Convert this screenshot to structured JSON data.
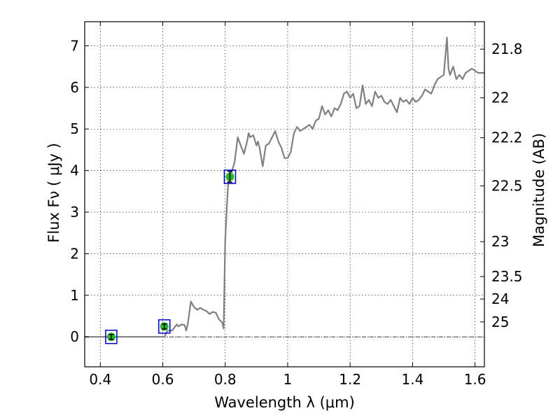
{
  "chart_data": {
    "type": "line",
    "xlabel": "Wavelength  λ (μm)",
    "ylabel": "Flux  Fν  ( μJy )",
    "ylabel_right": "Magnitude (AB)",
    "xlim": [
      0.35,
      1.63
    ],
    "ylim": [
      -0.72,
      7.58
    ],
    "grid": true,
    "x_ticks": [
      0.4,
      0.6,
      0.8,
      1.0,
      1.2,
      1.4,
      1.6
    ],
    "x_tick_labels": [
      "0.4",
      "0.6",
      "0.8",
      "1",
      "1.2",
      "1.4",
      "1.6"
    ],
    "y_ticks": [
      0,
      1,
      2,
      3,
      4,
      5,
      6,
      7
    ],
    "y_tick_labels": [
      "0",
      "1",
      "2",
      "3",
      "4",
      "5",
      "6",
      "7"
    ],
    "right_ticks": [
      {
        "label": "21.8",
        "flux": 6.92
      },
      {
        "label": "22",
        "flux": 5.75
      },
      {
        "label": "22.2",
        "flux": 4.79
      },
      {
        "label": "22.5",
        "flux": 3.63
      },
      {
        "label": "23",
        "flux": 2.29
      },
      {
        "label": "23.5",
        "flux": 1.45
      },
      {
        "label": "24",
        "flux": 0.91
      },
      {
        "label": "25",
        "flux": 0.36
      }
    ],
    "series": [
      {
        "color": "#808080",
        "x": [
          0.35,
          0.58,
          0.605,
          0.615,
          0.63,
          0.645,
          0.65,
          0.66,
          0.67,
          0.675,
          0.68,
          0.69,
          0.7,
          0.71,
          0.72,
          0.73,
          0.74,
          0.75,
          0.76,
          0.77,
          0.78,
          0.79,
          0.795,
          0.8,
          0.805,
          0.81,
          0.815,
          0.82,
          0.83,
          0.84,
          0.85,
          0.855,
          0.86,
          0.87,
          0.875,
          0.88,
          0.89,
          0.9,
          0.905,
          0.91,
          0.92,
          0.93,
          0.94,
          0.95,
          0.96,
          0.97,
          0.98,
          0.99,
          1.0,
          1.01,
          1.02,
          1.03,
          1.04,
          1.05,
          1.06,
          1.07,
          1.08,
          1.09,
          1.1,
          1.11,
          1.12,
          1.13,
          1.14,
          1.15,
          1.16,
          1.17,
          1.18,
          1.19,
          1.2,
          1.21,
          1.22,
          1.23,
          1.24,
          1.25,
          1.26,
          1.27,
          1.28,
          1.29,
          1.3,
          1.31,
          1.32,
          1.33,
          1.34,
          1.35,
          1.36,
          1.37,
          1.38,
          1.39,
          1.4,
          1.41,
          1.42,
          1.43,
          1.44,
          1.45,
          1.46,
          1.47,
          1.48,
          1.49,
          1.5,
          1.51,
          1.515,
          1.52,
          1.53,
          1.54,
          1.55,
          1.56,
          1.57,
          1.58,
          1.59,
          1.6,
          1.61,
          1.63
        ],
        "y": [
          0.0,
          0.0,
          0.0,
          0.15,
          0.15,
          0.3,
          0.25,
          0.3,
          0.28,
          0.15,
          0.3,
          0.85,
          0.72,
          0.65,
          0.7,
          0.65,
          0.62,
          0.55,
          0.6,
          0.58,
          0.42,
          0.35,
          0.2,
          2.3,
          3.1,
          3.75,
          3.85,
          3.95,
          4.2,
          4.8,
          4.6,
          4.5,
          4.4,
          4.7,
          4.9,
          4.8,
          4.85,
          4.6,
          4.7,
          4.55,
          4.1,
          4.6,
          4.65,
          4.8,
          4.95,
          4.7,
          4.55,
          4.3,
          4.3,
          4.45,
          4.9,
          5.05,
          4.95,
          5.0,
          5.05,
          5.1,
          5.0,
          5.2,
          5.25,
          5.55,
          5.35,
          5.45,
          5.3,
          5.5,
          5.45,
          5.6,
          5.85,
          5.9,
          5.75,
          5.85,
          5.5,
          5.55,
          6.05,
          5.6,
          5.7,
          5.55,
          5.9,
          5.75,
          5.8,
          5.65,
          5.6,
          5.7,
          5.55,
          5.4,
          5.75,
          5.65,
          5.7,
          5.6,
          5.75,
          5.65,
          5.7,
          5.8,
          5.95,
          5.9,
          5.85,
          6.05,
          6.2,
          6.25,
          6.3,
          7.2,
          6.45,
          6.3,
          6.5,
          6.2,
          6.3,
          6.2,
          6.35,
          6.4,
          6.45,
          6.4,
          6.35,
          6.35
        ]
      }
    ],
    "photometry": {
      "marker_color": "#22bb22",
      "box_color": "#0000cc",
      "points": [
        {
          "x": 0.435,
          "y": 0.0,
          "err": 0.06
        },
        {
          "x": 0.605,
          "y": 0.25,
          "err": 0.06
        },
        {
          "x": 0.815,
          "y": 3.85,
          "err": 0.13
        }
      ]
    }
  }
}
